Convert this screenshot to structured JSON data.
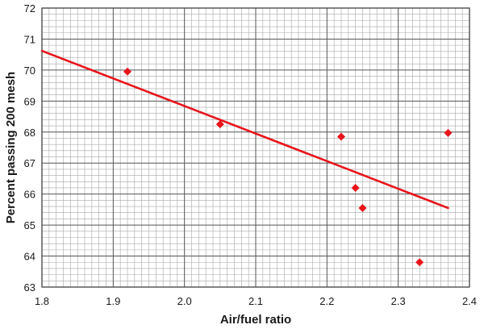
{
  "chart_data": {
    "type": "scatter",
    "xlabel": "Air/fuel ratio",
    "ylabel": "Percent passing 200 mesh",
    "xlim": [
      1.8,
      2.4
    ],
    "ylim": [
      63,
      72
    ],
    "x_ticks": [
      "1.8",
      "1.9",
      "2.0",
      "2.1",
      "2.2",
      "2.3",
      "2.4"
    ],
    "y_ticks": [
      "63",
      "64",
      "65",
      "66",
      "67",
      "68",
      "69",
      "70",
      "71",
      "72"
    ],
    "grid": true,
    "series": [
      {
        "kind": "points",
        "marker": "diamond",
        "color": "#e8141b",
        "x": [
          1.92,
          2.05,
          2.22,
          2.24,
          2.25,
          2.33,
          2.37
        ],
        "y": [
          69.95,
          68.25,
          67.85,
          66.2,
          65.55,
          63.8,
          67.97
        ]
      },
      {
        "kind": "trendline",
        "color": "#e8141b",
        "x": [
          1.8,
          2.37
        ],
        "y": [
          70.62,
          65.55
        ]
      }
    ],
    "colors": {
      "grid_minor": "#a8a8a8",
      "grid_major": "#555555",
      "axis": "#333333"
    }
  }
}
